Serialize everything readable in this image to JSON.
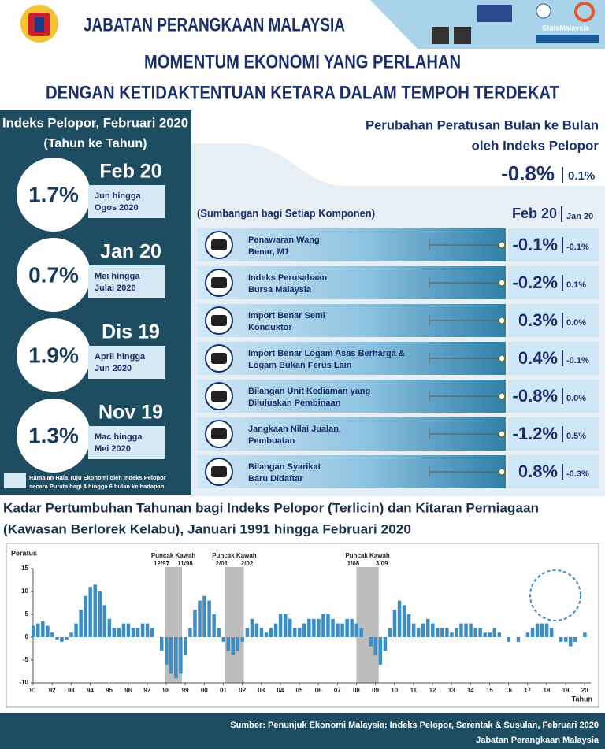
{
  "header": {
    "org": "JABATAN PERANGKAAN MALAYSIA",
    "brand": "StatsMalaysia"
  },
  "title": [
    "MOMENTUM EKONOMI YANG PERLAHAN",
    "DENGAN KETIDAKTENTUAN KETARA DALAM TEMPOH TERDEKAT"
  ],
  "leading_index": {
    "title": "Indeks Pelopor, Februari 2020",
    "subtitle": "(Tahun ke Tahun)",
    "items": [
      {
        "month": "Feb 20",
        "value": "1.7%",
        "forecast": [
          "Jun hingga",
          "Ogos 2020"
        ]
      },
      {
        "month": "Jan 20",
        "value": "0.7%",
        "forecast": [
          "Mei hingga",
          "Julai 2020"
        ]
      },
      {
        "month": "Dis 19",
        "value": "1.9%",
        "forecast": [
          "April hingga",
          "Jun 2020"
        ]
      },
      {
        "month": "Nov 19",
        "value": "1.3%",
        "forecast": [
          "Mac hingga",
          "Mei 2020"
        ]
      }
    ],
    "legend": [
      "Ramalan Hala Tuju Ekonomi oleh Indeks Pelopor",
      "secara Purata bagi 4 hingga 6 bulan ke hadapan"
    ]
  },
  "mom": {
    "title": [
      "Perubahan Peratusan Bulan ke Bulan",
      "oleh Indeks Pelopor"
    ],
    "current": "-0.8%",
    "previous": "0.1%"
  },
  "components": {
    "title": "(Sumbangan bagi Setiap Komponen)",
    "head_current": "Feb 20",
    "head_previous": "Jan 20",
    "rows": [
      {
        "name": [
          "Penawaran Wang",
          "Benar, M1"
        ],
        "current": "-0.1%",
        "previous": "-0.1%"
      },
      {
        "name": [
          "Indeks Perusahaan",
          "Bursa Malaysia"
        ],
        "current": "-0.2%",
        "previous": "0.1%"
      },
      {
        "name": [
          "Import Benar Semi",
          "Konduktor"
        ],
        "current": "0.3%",
        "previous": "0.0%"
      },
      {
        "name": [
          "Import Benar Logam Asas Berharga &",
          "Logam Bukan Ferus Lain"
        ],
        "current": "0.4%",
        "previous": "-0.1%"
      },
      {
        "name": [
          "Bilangan Unit Kediaman yang",
          "Diluluskan Pembinaan"
        ],
        "current": "-0.8%",
        "previous": "0.0%"
      },
      {
        "name": [
          "Jangkaan Nilai Jualan,",
          "Pembuatan"
        ],
        "current": "-1.2%",
        "previous": "0.5%"
      },
      {
        "name": [
          "Bilangan Syarikat",
          "Baru Didaftar"
        ],
        "current": "0.8%",
        "previous": "-0.3%"
      }
    ]
  },
  "chart_data": {
    "type": "bar",
    "title": [
      "Kadar Pertumbuhan Tahunan bagi Indeks Pelopor (Terlicin) dan Kitaran Perniagaan",
      "(Kawasan Berlorek Kelabu), Januari 1991 hingga Februari 2020"
    ],
    "ylabel": "Peratus",
    "xlabel": "Tahun",
    "color": "#3b8dc6",
    "x": [
      1991,
      1991.25,
      1991.5,
      1991.75,
      1992,
      1992.25,
      1992.5,
      1992.75,
      1993,
      1993.25,
      1993.5,
      1993.75,
      1994,
      1994.25,
      1994.5,
      1994.75,
      1995,
      1995.25,
      1995.5,
      1995.75,
      1996,
      1996.25,
      1996.5,
      1996.75,
      1997,
      1997.25,
      1997.5,
      1997.75,
      1998,
      1998.25,
      1998.5,
      1998.75,
      1999,
      1999.25,
      1999.5,
      1999.75,
      2000,
      2000.25,
      2000.5,
      2000.75,
      2001,
      2001.25,
      2001.5,
      2001.75,
      2002,
      2002.25,
      2002.5,
      2002.75,
      2003,
      2003.25,
      2003.5,
      2003.75,
      2004,
      2004.25,
      2004.5,
      2004.75,
      2005,
      2005.25,
      2005.5,
      2005.75,
      2006,
      2006.25,
      2006.5,
      2006.75,
      2007,
      2007.25,
      2007.5,
      2007.75,
      2008,
      2008.25,
      2008.5,
      2008.75,
      2009,
      2009.25,
      2009.5,
      2009.75,
      2010,
      2010.25,
      2010.5,
      2010.75,
      2011,
      2011.25,
      2011.5,
      2011.75,
      2012,
      2012.25,
      2012.5,
      2012.75,
      2013,
      2013.25,
      2013.5,
      2013.75,
      2014,
      2014.25,
      2014.5,
      2014.75,
      2015,
      2015.25,
      2015.5,
      2015.75,
      2016,
      2016.25,
      2016.5,
      2016.75,
      2017,
      2017.25,
      2017.5,
      2017.75,
      2018,
      2018.25,
      2018.5,
      2018.75,
      2019,
      2019.25,
      2019.5,
      2019.75,
      2020
    ],
    "values": [
      2.5,
      3,
      3.5,
      2.5,
      1,
      -0.5,
      -1,
      -0.5,
      1,
      3,
      6,
      9,
      11,
      11.5,
      10,
      7,
      4,
      2,
      2,
      3,
      3,
      2,
      2,
      3,
      3,
      2,
      0,
      -3,
      -6,
      -8,
      -9,
      -8,
      -4,
      2,
      6,
      8,
      9,
      8,
      5,
      2,
      -1,
      -3,
      -4,
      -3,
      -1,
      2,
      4,
      3,
      2,
      1,
      2,
      3,
      5,
      5,
      4,
      2,
      2,
      3,
      4,
      4,
      4,
      5,
      5,
      4,
      3,
      3,
      4,
      4,
      3,
      2,
      0,
      -2,
      -4,
      -6,
      -3,
      2,
      6,
      8,
      7,
      5,
      3,
      2,
      3,
      4,
      3,
      2,
      2,
      2,
      1,
      2,
      3,
      3,
      3,
      2,
      2,
      1,
      1,
      2,
      1,
      0,
      -1,
      0,
      -1,
      0,
      1,
      2,
      3,
      3,
      3,
      2,
      0,
      -1,
      -1,
      -2,
      -1,
      0,
      1
    ],
    "xlim": [
      1991,
      2020.2
    ],
    "xticks": [
      {
        "value": 1991,
        "label": "91"
      },
      {
        "value": 1992,
        "label": "92"
      },
      {
        "value": 1993,
        "label": "93"
      },
      {
        "value": 1994,
        "label": "94"
      },
      {
        "value": 1995,
        "label": "95"
      },
      {
        "value": 1996,
        "label": "96"
      },
      {
        "value": 1997,
        "label": "97"
      },
      {
        "value": 1998,
        "label": "98"
      },
      {
        "value": 1999,
        "label": "99"
      },
      {
        "value": 2000,
        "label": "00"
      },
      {
        "value": 2001,
        "label": "01"
      },
      {
        "value": 2002,
        "label": "02"
      },
      {
        "value": 2003,
        "label": "03"
      },
      {
        "value": 2004,
        "label": "04"
      },
      {
        "value": 2005,
        "label": "05"
      },
      {
        "value": 2006,
        "label": "06"
      },
      {
        "value": 2007,
        "label": "07"
      },
      {
        "value": 2008,
        "label": "08"
      },
      {
        "value": 2009,
        "label": "09"
      },
      {
        "value": 2010,
        "label": "10"
      },
      {
        "value": 2011,
        "label": "11"
      },
      {
        "value": 2012,
        "label": "12"
      },
      {
        "value": 2013,
        "label": "13"
      },
      {
        "value": 2014,
        "label": "14"
      },
      {
        "value": 2015,
        "label": "15"
      },
      {
        "value": 2016,
        "label": "16"
      },
      {
        "value": 2017,
        "label": "17"
      },
      {
        "value": 2018,
        "label": "18"
      },
      {
        "value": 2019,
        "label": "19"
      },
      {
        "value": 2020,
        "label": "20"
      }
    ],
    "ylim": [
      -10,
      15
    ],
    "yticks": [
      -10,
      -5,
      0,
      5,
      10,
      15
    ],
    "recessions": [
      {
        "label": "Puncak Kawah",
        "dates": [
          "12/97",
          "11/98"
        ],
        "range": [
          1997.92,
          1998.83
        ]
      },
      {
        "label": "Puncak Kawah",
        "dates": [
          "2/01",
          "2/02"
        ],
        "range": [
          2001.08,
          2002.08
        ]
      },
      {
        "label": "Puncak Kawah",
        "dates": [
          "1/08",
          "3/09"
        ],
        "range": [
          2008.0,
          2009.17
        ]
      }
    ]
  },
  "footer": [
    "Sumber: Penunjuk Ekonomi Malaysia: Indeks Pelopor, Serentak & Susulan, Februari 2020",
    "Jabatan Perangkaan Malaysia"
  ]
}
